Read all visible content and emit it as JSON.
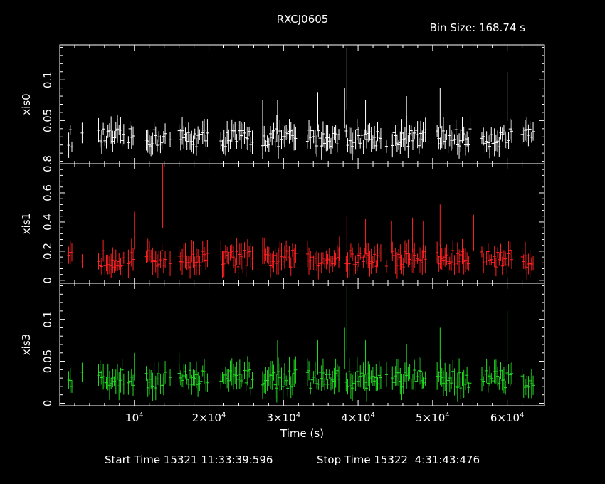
{
  "chart_data": {
    "type": "scatter",
    "title": "RXCJ0605",
    "bin_size_label": "Bin Size: 168.74 s",
    "xlabel": "Time (s)",
    "xlim": [
      0,
      65000
    ],
    "x_ticks": [
      {
        "value": 10000,
        "mantissa": "",
        "exp": "4"
      },
      {
        "value": 20000,
        "mantissa": "2×",
        "exp": "4"
      },
      {
        "value": 30000,
        "mantissa": "3×",
        "exp": "4"
      },
      {
        "value": 40000,
        "mantissa": "4×",
        "exp": "4"
      },
      {
        "value": 50000,
        "mantissa": "5×",
        "exp": "4"
      },
      {
        "value": 60000,
        "mantissa": "6×",
        "exp": "4"
      }
    ],
    "gti_windows": [
      [
        1200,
        1700
      ],
      [
        3000,
        3200
      ],
      [
        5200,
        8600
      ],
      [
        9200,
        10000
      ],
      [
        11600,
        14200
      ],
      [
        14800,
        14900
      ],
      [
        16000,
        20000
      ],
      [
        21600,
        26000
      ],
      [
        27200,
        31800
      ],
      [
        33200,
        37600
      ],
      [
        38400,
        43200
      ],
      [
        43800,
        43900
      ],
      [
        44600,
        49200
      ],
      [
        50600,
        55200
      ],
      [
        56600,
        60800
      ],
      [
        62000,
        63600
      ]
    ],
    "panels": [
      {
        "ylabel": "xis0",
        "color": "#ffffff",
        "ylim": [
          -0.003,
          0.143
        ],
        "yticks": [
          0.05,
          0.1
        ],
        "ytick_labels": [
          "0.05",
          "0.1"
        ],
        "series_level": 0.025,
        "spikes": [
          [
            38500,
            0.14
          ],
          [
            60000,
            0.11
          ],
          [
            51000,
            0.09
          ],
          [
            38200,
            0.09
          ],
          [
            34600,
            0.085
          ],
          [
            29200,
            0.075
          ],
          [
            27200,
            0.075
          ],
          [
            46500,
            0.08
          ],
          [
            41000,
            0.075
          ]
        ]
      },
      {
        "ylabel": "xis1",
        "color": "#ff2222",
        "ylim": [
          -0.02,
          0.8
        ],
        "yticks": [
          0,
          0.2,
          0.4,
          0.6,
          0.8
        ],
        "ytick_labels": [
          "0",
          "0.2",
          "0.4",
          "0.6",
          "0.8"
        ],
        "series_level": 0.13,
        "spikes": [
          [
            13800,
            0.8
          ],
          [
            51000,
            0.52
          ],
          [
            10000,
            0.47
          ],
          [
            38500,
            0.44
          ],
          [
            55500,
            0.45
          ],
          [
            47300,
            0.43
          ],
          [
            41000,
            0.42
          ],
          [
            48800,
            0.41
          ],
          [
            44500,
            0.41
          ],
          [
            37500,
            0.3
          ]
        ]
      },
      {
        "ylabel": "xis3",
        "color": "#22dd22",
        "ylim": [
          -0.003,
          0.143
        ],
        "yticks": [
          0,
          0.05,
          0.1
        ],
        "ytick_labels": [
          "0",
          "0.05",
          "0.1"
        ],
        "series_level": 0.025,
        "spikes": [
          [
            38500,
            0.14
          ],
          [
            60000,
            0.11
          ],
          [
            51000,
            0.09
          ],
          [
            38200,
            0.09
          ],
          [
            34600,
            0.075
          ],
          [
            29200,
            0.075
          ],
          [
            41000,
            0.075
          ],
          [
            46500,
            0.07
          ],
          [
            16000,
            0.06
          ],
          [
            10000,
            0.06
          ]
        ]
      }
    ]
  },
  "footer": {
    "start_time": "Start Time 15321 11:33:39:596",
    "stop_time": "Stop Time 15322  4:31:43:476"
  }
}
